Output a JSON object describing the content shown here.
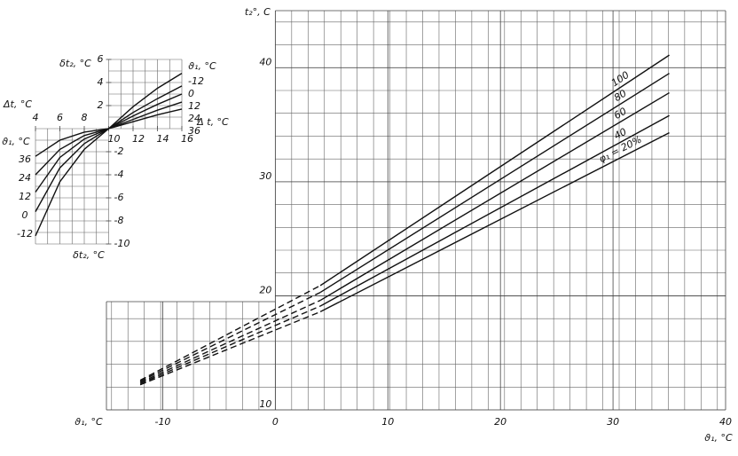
{
  "chart_data": [
    {
      "type": "line",
      "x_label": "ϑ₁, °C",
      "x_label_left": "ϑ₁, °C",
      "y_label": "t₂°, C",
      "x": [
        -12,
        4,
        35
      ],
      "segment_styles": [
        "dashed",
        "solid"
      ],
      "xlim": [
        -15,
        40
      ],
      "xticks": [
        -10,
        0,
        10,
        20,
        30,
        40
      ],
      "ylim": [
        10,
        45
      ],
      "yticks": [
        10,
        20,
        30,
        40
      ],
      "grid": true,
      "series": [
        {
          "name": "100",
          "color": "#111",
          "values": [
            12.6,
            20.9,
            41.1
          ]
        },
        {
          "name": "80",
          "color": "#111",
          "values": [
            12.5,
            20.3,
            39.5
          ]
        },
        {
          "name": "60",
          "color": "#111",
          "values": [
            12.4,
            19.6,
            37.8
          ]
        },
        {
          "name": "40",
          "color": "#111",
          "values": [
            12.3,
            19.1,
            35.8
          ]
        },
        {
          "name": "φ₁ = 20%",
          "color": "#111",
          "values": [
            12.2,
            18.6,
            34.3
          ]
        }
      ]
    },
    {
      "type": "line",
      "y_label_top": "δt₂, °C",
      "y_label_bottom": "δt₂, °C",
      "x_label_left": "Δt, °C",
      "x_label_right": "Δ t, °C",
      "series_label_left": "ϑ₁, °C",
      "series_label_right": "ϑ₁, °C",
      "x": [
        4,
        6,
        8,
        10,
        12,
        14,
        16
      ],
      "xlim": [
        4,
        16
      ],
      "xticks": [
        4,
        6,
        8,
        10,
        12,
        14,
        16
      ],
      "ylim": [
        -10,
        6
      ],
      "yticks": [
        -10,
        -8,
        -6,
        -4,
        -2,
        2,
        4,
        6
      ],
      "grid": true,
      "series": [
        {
          "name": "-12",
          "color": "#111",
          "values": [
            -9.3,
            -4.6,
            -1.8,
            0,
            1.9,
            3.5,
            4.8
          ]
        },
        {
          "name": "0",
          "color": "#111",
          "values": [
            -7.2,
            -3.4,
            -1.3,
            0,
            1.4,
            2.6,
            3.7
          ]
        },
        {
          "name": "12",
          "color": "#111",
          "values": [
            -5.5,
            -2.5,
            -0.9,
            0,
            1.1,
            2.1,
            3.0
          ]
        },
        {
          "name": "24",
          "color": "#111",
          "values": [
            -4.0,
            -1.8,
            -0.6,
            0,
            0.8,
            1.6,
            2.3
          ]
        },
        {
          "name": "36",
          "color": "#111",
          "values": [
            -2.4,
            -1.0,
            -0.3,
            0,
            0.6,
            1.2,
            1.7
          ]
        }
      ]
    }
  ]
}
